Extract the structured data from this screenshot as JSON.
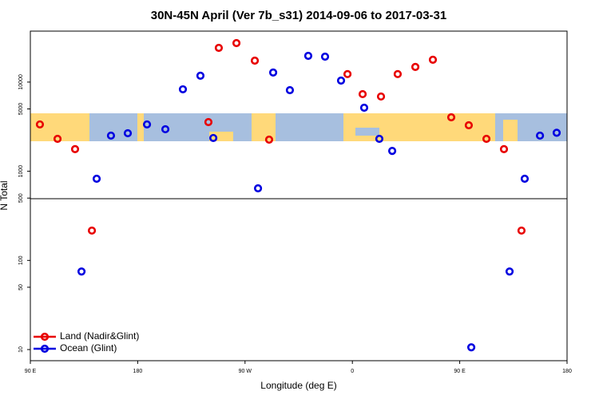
{
  "chart_data": {
    "type": "scatter",
    "title": "30N-45N April (Ver 7b_s31)   2014-09-06 to 2017-03-31",
    "x_label": "Longitude (deg E)",
    "y_label": "N Total",
    "log_y": true,
    "legend": "lower left",
    "xlim": [
      90,
      540
    ],
    "xticks": [
      {
        "value": 90,
        "label": "90 E"
      },
      180,
      {
        "value": 270,
        "label": "90 W"
      },
      {
        "value": 360,
        "label": "0"
      },
      {
        "value": 450,
        "label": "90 E"
      },
      {
        "value": 540,
        "label": "180"
      }
    ],
    "ylim": [
      7.5,
      37300
    ],
    "yticks": [
      10,
      50,
      100,
      500,
      1000,
      5000,
      10000
    ],
    "series": [
      {
        "name": "Land (Nadir&Glint)",
        "color": "#e80000",
        "x": [
          98,
          112.8,
          127.5,
          141.6,
          239.3,
          248,
          262.8,
          278.2,
          290.2,
          355.9,
          368.6,
          384,
          398,
          412.8,
          427.5,
          442.9,
          457.6,
          472.4,
          487.1,
          501.8
        ],
        "values": [
          3350,
          2310,
          1770,
          216,
          3560,
          24200,
          27400,
          17400,
          2260,
          12300,
          7330,
          6890,
          12300,
          14800,
          17800,
          4030,
          3280,
          2310,
          1770,
          216
        ]
      },
      {
        "name": "Ocean (Glint)",
        "color": "#0000e0",
        "x": [
          132.9,
          145.6,
          157.6,
          171.7,
          187.8,
          203.2,
          217.9,
          232.6,
          243.4,
          280.9,
          293.6,
          307.6,
          323,
          337.1,
          350.5,
          369.9,
          382.6,
          393.4,
          459.7,
          491.8,
          504.5,
          517.3,
          531.3
        ],
        "values": [
          75,
          824,
          2510,
          2670,
          3350,
          2960,
          8300,
          11800,
          2360,
          643,
          12800,
          8120,
          19700,
          19300,
          10400,
          5160,
          2310,
          1690,
          10.6,
          75,
          824,
          2510,
          2700
        ]
      }
    ]
  }
}
